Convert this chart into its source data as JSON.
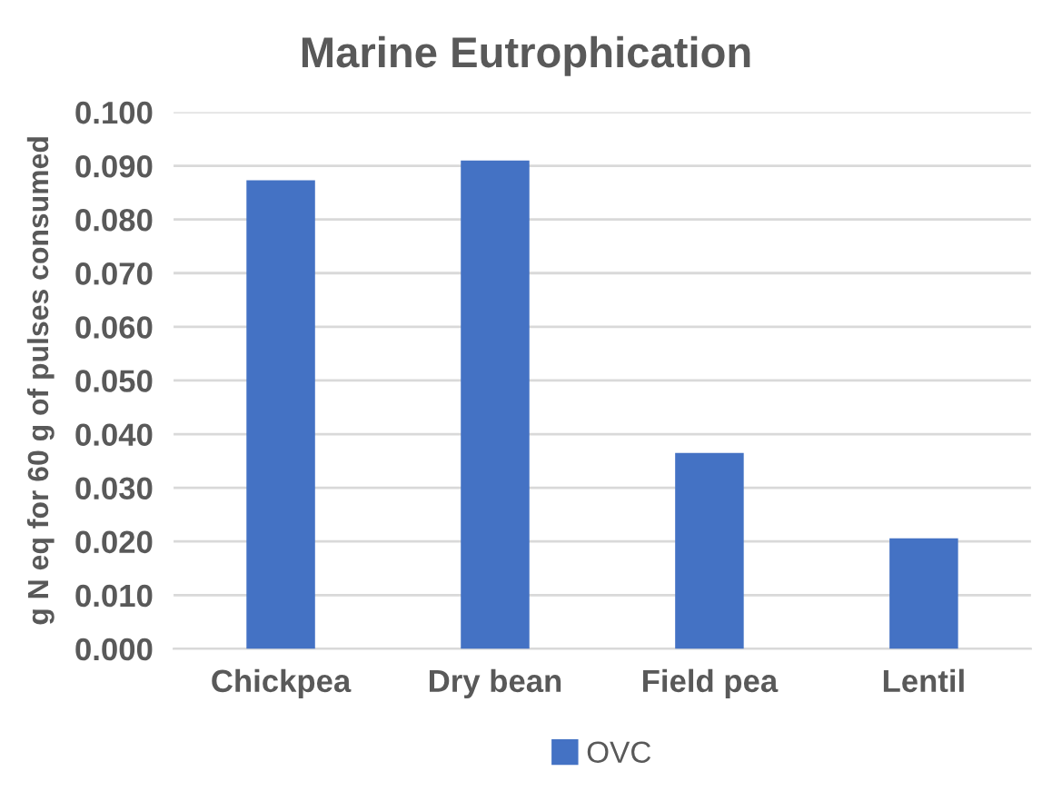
{
  "chart_data": {
    "type": "bar",
    "title": "Marine Eutrophication",
    "ylabel": "g N eq for 60 g of pulses consumed",
    "categories": [
      "Chickpea",
      "Dry bean",
      "Field pea",
      "Lentil"
    ],
    "series": [
      {
        "name": "OVC",
        "color": "#4472c4",
        "values": [
          0.0873,
          0.091,
          0.0365,
          0.0206
        ]
      }
    ],
    "ylim": [
      0,
      0.1
    ],
    "yticks": [
      {
        "value": 0,
        "label": "0.000"
      },
      {
        "value": 0.01,
        "label": "0.010"
      },
      {
        "value": 0.02,
        "label": "0.020"
      },
      {
        "value": 0.03,
        "label": "0.030"
      },
      {
        "value": 0.04,
        "label": "0.040"
      },
      {
        "value": 0.05,
        "label": "0.050"
      },
      {
        "value": 0.06,
        "label": "0.060"
      },
      {
        "value": 0.07,
        "label": "0.070"
      },
      {
        "value": 0.08,
        "label": "0.080"
      },
      {
        "value": 0.09,
        "label": "0.090"
      },
      {
        "value": 0.1,
        "label": "0.100"
      }
    ],
    "grid": "y",
    "legend": "bottom"
  }
}
